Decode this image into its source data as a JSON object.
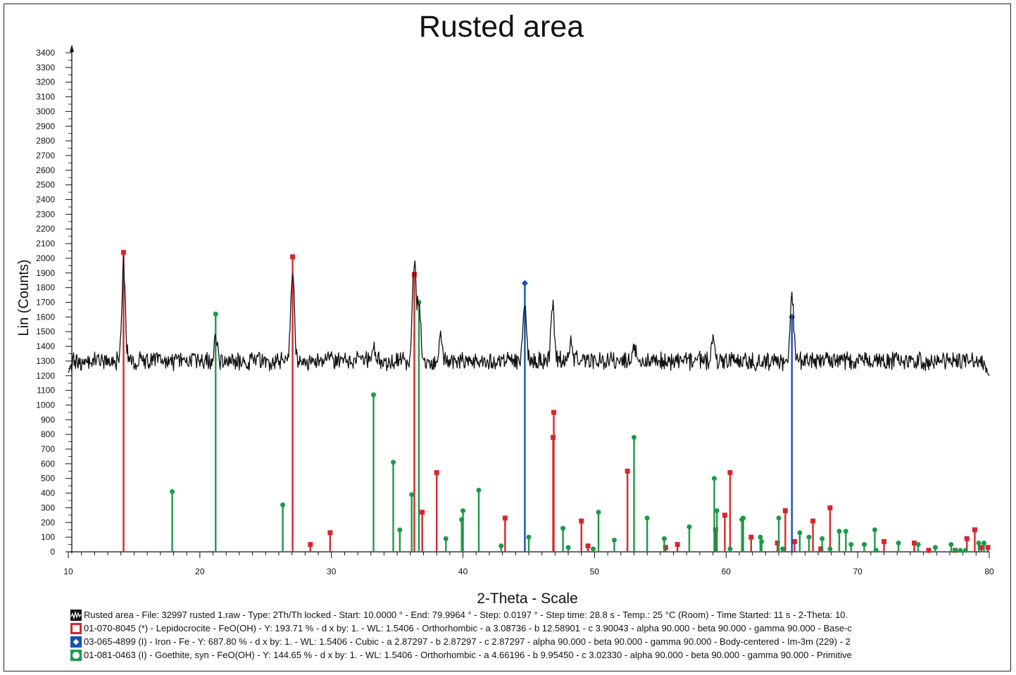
{
  "chart_data": {
    "type": "line",
    "title": "Rusted area",
    "xlabel": "2-Theta - Scale",
    "ylabel": "Lin (Counts)",
    "xlim": [
      10,
      80
    ],
    "ylim": [
      0,
      3400
    ],
    "x_ticks": [
      10,
      20,
      30,
      40,
      50,
      60,
      70,
      80
    ],
    "y_ticks": [
      0,
      100,
      200,
      300,
      400,
      500,
      600,
      700,
      800,
      900,
      1000,
      1100,
      1200,
      1300,
      1400,
      1500,
      1600,
      1700,
      1800,
      1900,
      2000,
      2100,
      2200,
      2300,
      2400,
      2500,
      2600,
      2700,
      2800,
      2900,
      3000,
      3100,
      3200,
      3300,
      3400
    ],
    "grid": false,
    "pattern": {
      "color": "#111111",
      "baseline": 1300,
      "noise": 55,
      "start": [
        10.0,
        1220
      ],
      "end": [
        80.0,
        1200
      ],
      "peaks": [
        [
          14.2,
          1960
        ],
        [
          21.2,
          1480
        ],
        [
          27.05,
          1930
        ],
        [
          33.2,
          1400
        ],
        [
          36.3,
          1980
        ],
        [
          36.65,
          1700
        ],
        [
          38.3,
          1460
        ],
        [
          44.7,
          1720
        ],
        [
          46.8,
          1690
        ],
        [
          48.2,
          1440
        ],
        [
          53.0,
          1420
        ],
        [
          59.0,
          1420
        ],
        [
          65.0,
          1740
        ]
      ]
    },
    "phases": [
      {
        "color": "#d9262c",
        "marker": "square",
        "peaks": [
          [
            14.2,
            2040
          ],
          [
            27.05,
            2010
          ],
          [
            28.4,
            50
          ],
          [
            29.9,
            130
          ],
          [
            36.3,
            1890
          ],
          [
            36.9,
            270
          ],
          [
            38.0,
            540
          ],
          [
            43.2,
            230
          ],
          [
            46.9,
            950
          ],
          [
            46.85,
            780
          ],
          [
            49.0,
            210
          ],
          [
            49.5,
            40
          ],
          [
            52.5,
            550
          ],
          [
            55.4,
            30
          ],
          [
            56.3,
            50
          ],
          [
            59.2,
            150
          ],
          [
            59.9,
            250
          ],
          [
            60.3,
            540
          ],
          [
            61.9,
            100
          ],
          [
            63.9,
            60
          ],
          [
            64.5,
            280
          ],
          [
            65.2,
            70
          ],
          [
            66.6,
            210
          ],
          [
            67.2,
            20
          ],
          [
            67.9,
            300
          ],
          [
            72.0,
            70
          ],
          [
            74.3,
            60
          ],
          [
            75.4,
            10
          ],
          [
            77.4,
            10
          ],
          [
            78.3,
            90
          ],
          [
            78.9,
            150
          ],
          [
            79.4,
            30
          ],
          [
            79.9,
            30
          ]
        ]
      },
      {
        "color": "#1a4fb5",
        "marker": "diamond",
        "peaks": [
          [
            44.7,
            1830
          ],
          [
            65.0,
            1600
          ]
        ]
      },
      {
        "color": "#1c9a48",
        "marker": "circle",
        "peaks": [
          [
            17.9,
            410
          ],
          [
            21.2,
            1620
          ],
          [
            26.3,
            320
          ],
          [
            33.2,
            1070
          ],
          [
            34.7,
            610
          ],
          [
            35.2,
            150
          ],
          [
            36.1,
            390
          ],
          [
            36.65,
            1700
          ],
          [
            38.7,
            90
          ],
          [
            39.9,
            220
          ],
          [
            40.0,
            280
          ],
          [
            41.2,
            420
          ],
          [
            42.9,
            40
          ],
          [
            45.0,
            100
          ],
          [
            47.6,
            160
          ],
          [
            48.0,
            30
          ],
          [
            49.9,
            20
          ],
          [
            50.3,
            270
          ],
          [
            51.5,
            80
          ],
          [
            53.0,
            780
          ],
          [
            54.0,
            230
          ],
          [
            55.3,
            90
          ],
          [
            57.2,
            170
          ],
          [
            59.1,
            500
          ],
          [
            59.3,
            280
          ],
          [
            60.3,
            20
          ],
          [
            61.2,
            220
          ],
          [
            61.3,
            230
          ],
          [
            62.6,
            100
          ],
          [
            62.7,
            70
          ],
          [
            64.0,
            230
          ],
          [
            64.3,
            20
          ],
          [
            65.6,
            130
          ],
          [
            66.3,
            100
          ],
          [
            67.3,
            90
          ],
          [
            67.9,
            20
          ],
          [
            68.6,
            140
          ],
          [
            69.1,
            140
          ],
          [
            69.5,
            50
          ],
          [
            70.5,
            50
          ],
          [
            71.3,
            150
          ],
          [
            71.4,
            10
          ],
          [
            73.1,
            60
          ],
          [
            74.6,
            50
          ],
          [
            75.9,
            30
          ],
          [
            77.1,
            50
          ],
          [
            77.4,
            10
          ],
          [
            77.8,
            10
          ],
          [
            78.2,
            10
          ],
          [
            79.2,
            60
          ],
          [
            79.6,
            60
          ]
        ]
      }
    ]
  },
  "legend": {
    "pattern": "Rusted area - File: 32997 rusted 1.raw - Type: 2Th/Th locked - Start: 10.0000 ° - End: 79.9964 ° - Step: 0.0197 ° - Step time: 28.8 s - Temp.: 25 °C (Room) - Time Started: 11 s - 2-Theta: 10.",
    "lepidocrocite": "01-070-8045 (*) - Lepidocrocite - FeO(OH) - Y: 193.71 % - d x by: 1. - WL: 1.5406 - Orthorhombic - a 3.08736 - b 12.58901 - c 3.90043 - alpha 90.000 - beta 90.000 - gamma 90.000 - Base-c",
    "iron": "03-065-4899 (I) - Iron - Fe - Y: 687.80 % - d x by: 1. - WL: 1.5406 - Cubic - a 2.87297 - b 2.87297 - c 2.87297 - alpha 90.000 - beta 90.000 - gamma 90.000 - Body-centered - Im-3m (229) - 2",
    "goethite": "01-081-0463 (I) - Goethite, syn - FeO(OH) - Y: 144.65 % - d x by: 1. - WL: 1.5406 - Orthorhombic - a 4.66196 - b 9.95450 - c 3.02330 - alpha 90.000 - beta 90.000 - gamma 90.000 - Primitive"
  }
}
